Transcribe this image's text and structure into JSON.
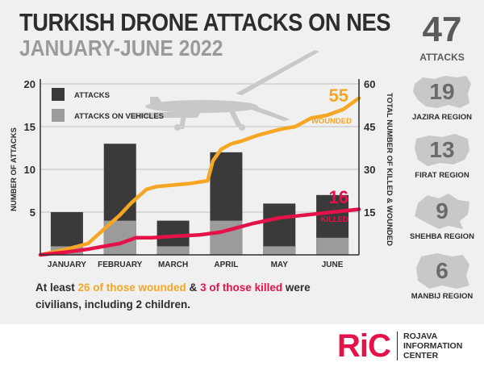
{
  "header": {
    "title": "TURKISH DRONE ATTACKS ON NES",
    "subtitle": "JANUARY-JUNE 2022"
  },
  "colors": {
    "attacks_bar": "#3a3a3a",
    "vehicles_bar": "#9b9b9b",
    "wounded_line": "#f5a623",
    "killed_line": "#e5124a",
    "panel_bg": "#f0f0f0"
  },
  "chart_data": {
    "type": "bar",
    "categories": [
      "JANUARY",
      "FEBRUARY",
      "MARCH",
      "APRIL",
      "MAY",
      "JUNE"
    ],
    "series": [
      {
        "name": "ATTACKS",
        "values": [
          5,
          13,
          4,
          12,
          6,
          7
        ]
      },
      {
        "name": "ATTACKS ON VEHICLES",
        "values": [
          1,
          4,
          1,
          4,
          1,
          2
        ]
      }
    ],
    "ylabel": "NUMBER OF ATTACKS",
    "ylim": [
      0,
      20
    ],
    "yticks": [
      5,
      10,
      15,
      20
    ],
    "y2label": "TOTAL NUMBER OF KILLED & WOUNDED",
    "y2lim": [
      0,
      60
    ],
    "y2ticks": [
      15,
      30,
      45,
      60
    ],
    "lines": [
      {
        "name": "WOUNDED",
        "total": "55",
        "x": [
          -0.5,
          0.0,
          0.4,
          0.7,
          1.0,
          1.2,
          1.5,
          1.7,
          2.3,
          2.65,
          2.75,
          2.9,
          3.1,
          3.3,
          3.6,
          4.0,
          4.3,
          4.6,
          4.9,
          5.2,
          5.5
        ],
        "y": [
          0,
          2,
          4,
          9,
          14,
          18,
          23,
          24,
          25,
          26,
          33,
          37,
          39,
          40,
          42,
          44,
          45,
          48,
          49,
          51,
          55
        ]
      },
      {
        "name": "KILLED",
        "total": "16",
        "x": [
          -0.5,
          0.0,
          0.4,
          0.7,
          1.0,
          1.3,
          1.6,
          2.0,
          2.5,
          2.9,
          3.2,
          3.5,
          4.0,
          4.5,
          5.0,
          5.5
        ],
        "y": [
          0,
          1,
          2,
          3,
          4,
          6,
          6,
          6.5,
          7,
          8,
          9.5,
          11,
          13,
          14,
          15,
          16
        ]
      }
    ],
    "grid": true,
    "legend": "top-left"
  },
  "caption": {
    "p1": "At least ",
    "h1": "26 of those wounded",
    "p2": " & ",
    "h2": "3 of those killed",
    "p3": " were civilians, including 2 children."
  },
  "sidebar": {
    "total_count": "47",
    "total_label": "ATTACKS",
    "regions": [
      {
        "count": "19",
        "label": "JAZIRA REGION"
      },
      {
        "count": "13",
        "label": "FIRAT REGION"
      },
      {
        "count": "9",
        "label": "SHEHBA REGION"
      },
      {
        "count": "6",
        "label": "MANBIJ REGION"
      }
    ]
  },
  "logo": {
    "mark": "RiC",
    "line1": "ROJAVA",
    "line2": "INFORMATION",
    "line3": "CENTER"
  }
}
